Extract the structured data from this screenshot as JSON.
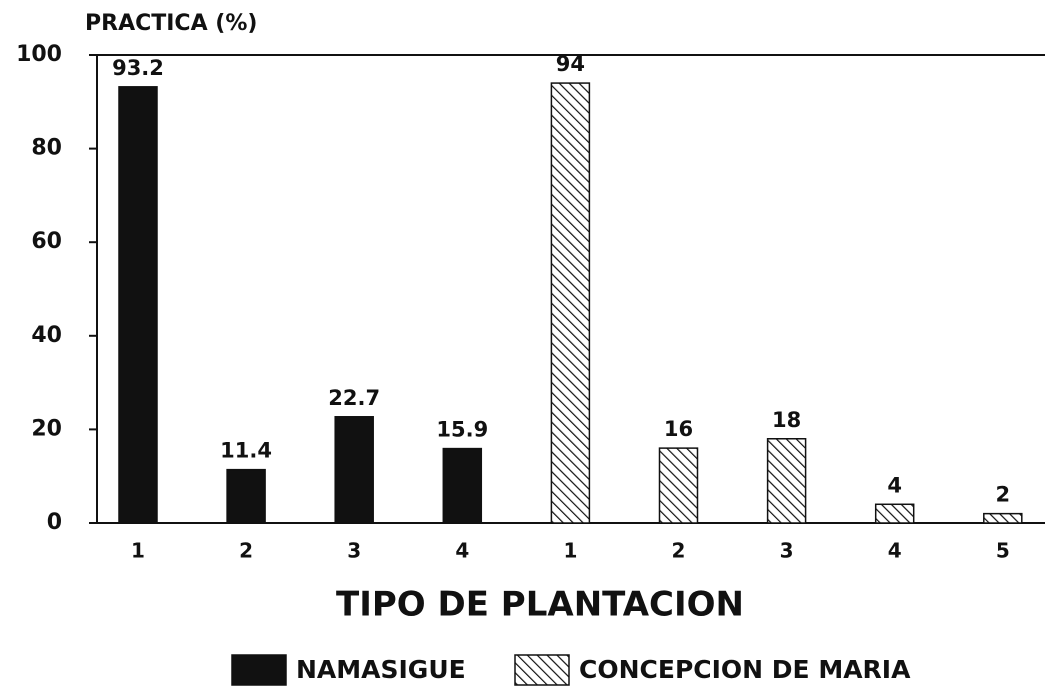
{
  "chart_data": {
    "type": "bar",
    "title": "PRACTICA (%)",
    "xlabel": "TIPO DE PLANTACION",
    "categories": [
      "1",
      "2",
      "3",
      "4",
      "1",
      "2",
      "3",
      "4",
      "5"
    ],
    "series": [
      {
        "name": "NAMASIGUE",
        "color": "#111111",
        "hatch": false,
        "values": [
          93.2,
          11.4,
          22.7,
          15.9,
          null,
          null,
          null,
          null,
          null
        ]
      },
      {
        "name": "CONCEPCION DE MARIA",
        "color": "#111111",
        "hatch": true,
        "values": [
          null,
          null,
          null,
          null,
          94,
          16,
          18,
          4,
          2
        ]
      }
    ],
    "ylim": [
      0,
      100
    ],
    "yticks": [
      0,
      20,
      40,
      60,
      80,
      100
    ],
    "grid": false,
    "legend": "bottom"
  }
}
